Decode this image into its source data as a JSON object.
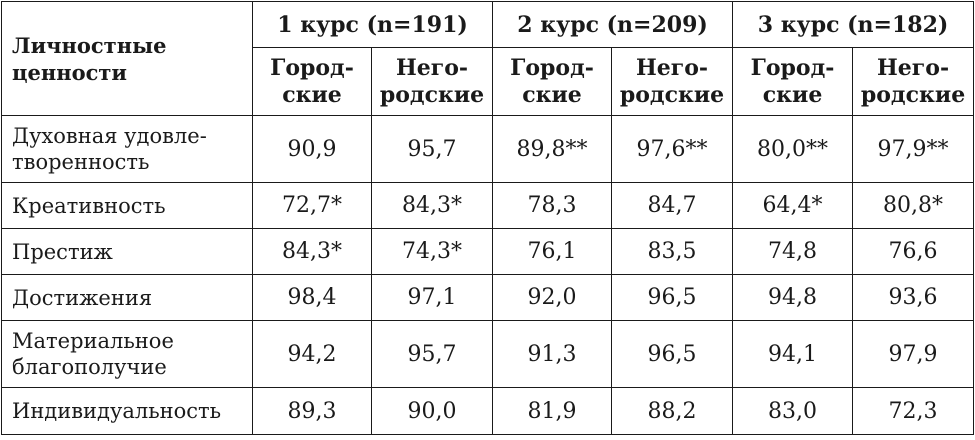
{
  "header": {
    "corner": [
      "Личностные",
      "ценности"
    ],
    "courses": [
      "1 курс (n=191)",
      "2 курс (n=209)",
      "3 курс (n=182)"
    ],
    "subheaders": [
      [
        "Город-",
        "ские"
      ],
      [
        "Него-",
        "родские"
      ],
      [
        "Город-",
        "ские"
      ],
      [
        "Него-",
        "родские"
      ],
      [
        "Город-",
        "ские"
      ],
      [
        "Него-",
        "родские"
      ]
    ]
  },
  "rows": [
    {
      "label": [
        "Духовная удовле-",
        "творенность"
      ],
      "values": [
        "90,9",
        "95,7",
        "89,8**",
        "97,6**",
        "80,0**",
        "97,9**"
      ]
    },
    {
      "label": [
        "Креативность"
      ],
      "values": [
        "72,7*",
        "84,3*",
        "78,3",
        "84,7",
        "64,4*",
        "80,8*"
      ]
    },
    {
      "label": [
        "Престиж"
      ],
      "values": [
        "84,3*",
        "74,3*",
        "76,1",
        "83,5",
        "74,8",
        "76,6"
      ]
    },
    {
      "label": [
        "Достижения"
      ],
      "values": [
        "98,4",
        "97,1",
        "92,0",
        "96,5",
        "94,8",
        "93,6"
      ]
    },
    {
      "label": [
        "Материальное",
        "благополучие"
      ],
      "values": [
        "94,2",
        "95,7",
        "91,3",
        "96,5",
        "94,1",
        "97,9"
      ]
    },
    {
      "label": [
        "Индивидуальность"
      ],
      "values": [
        "89,3",
        "90,0",
        "81,9",
        "88,2",
        "83,0",
        "72,3"
      ]
    }
  ]
}
